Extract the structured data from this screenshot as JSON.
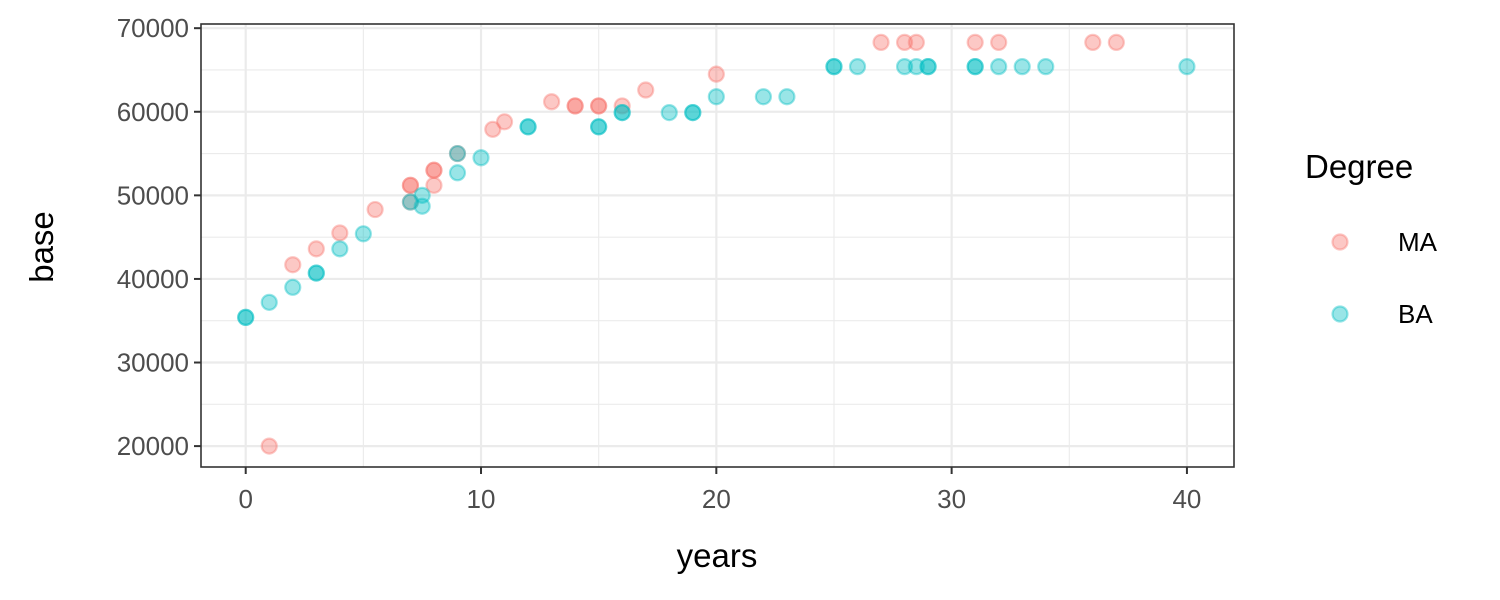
{
  "chart_data": {
    "type": "scatter",
    "xlabel": "years",
    "ylabel": "base",
    "xlim": [
      -1.9,
      42
    ],
    "ylim": [
      17500,
      70500
    ],
    "xticks": [
      0,
      10,
      20,
      30,
      40
    ],
    "yticks": [
      20000,
      30000,
      40000,
      50000,
      60000,
      70000
    ],
    "grid": true,
    "legend": {
      "title": "Degree",
      "placement": "right"
    },
    "colors": {
      "MA": "#F8766D",
      "BA": "#00BFC4"
    },
    "point_alpha": 0.4,
    "series": [
      {
        "name": "MA",
        "points": [
          [
            1,
            20000
          ],
          [
            2,
            41700
          ],
          [
            3,
            43600
          ],
          [
            4,
            45500
          ],
          [
            5.5,
            48300
          ],
          [
            7,
            49200
          ],
          [
            7,
            51200
          ],
          [
            7,
            51200
          ],
          [
            8,
            51200
          ],
          [
            8,
            53000
          ],
          [
            8,
            53000
          ],
          [
            9,
            55000
          ],
          [
            10.5,
            57900
          ],
          [
            11,
            58800
          ],
          [
            13,
            61200
          ],
          [
            14,
            60700
          ],
          [
            14,
            60700
          ],
          [
            15,
            60700
          ],
          [
            15,
            60700
          ],
          [
            16,
            60700
          ],
          [
            17,
            62600
          ],
          [
            20,
            64500
          ],
          [
            27,
            68300
          ],
          [
            28,
            68300
          ],
          [
            28.5,
            68300
          ],
          [
            31,
            68300
          ],
          [
            32,
            68300
          ],
          [
            36,
            68300
          ],
          [
            37,
            68300
          ]
        ]
      },
      {
        "name": "BA",
        "points": [
          [
            0,
            35400
          ],
          [
            0,
            35400
          ],
          [
            1,
            37200
          ],
          [
            2,
            39000
          ],
          [
            3,
            40700
          ],
          [
            3,
            40700
          ],
          [
            4,
            43600
          ],
          [
            5,
            45400
          ],
          [
            7,
            49200
          ],
          [
            7.5,
            48700
          ],
          [
            7.5,
            50000
          ],
          [
            9,
            52700
          ],
          [
            9,
            55000
          ],
          [
            10,
            54500
          ],
          [
            12,
            58200
          ],
          [
            12,
            58200
          ],
          [
            15,
            58200
          ],
          [
            15,
            58200
          ],
          [
            16,
            59900
          ],
          [
            16,
            59900
          ],
          [
            18,
            59900
          ],
          [
            19,
            59900
          ],
          [
            19,
            59900
          ],
          [
            20,
            61800
          ],
          [
            22,
            61800
          ],
          [
            23,
            61800
          ],
          [
            25,
            65400
          ],
          [
            25,
            65400
          ],
          [
            26,
            65400
          ],
          [
            28,
            65400
          ],
          [
            28.5,
            65400
          ],
          [
            29,
            65400
          ],
          [
            29,
            65400
          ],
          [
            31,
            65400
          ],
          [
            31,
            65400
          ],
          [
            32,
            65400
          ],
          [
            33,
            65400
          ],
          [
            34,
            65400
          ],
          [
            40,
            65400
          ]
        ]
      }
    ]
  }
}
